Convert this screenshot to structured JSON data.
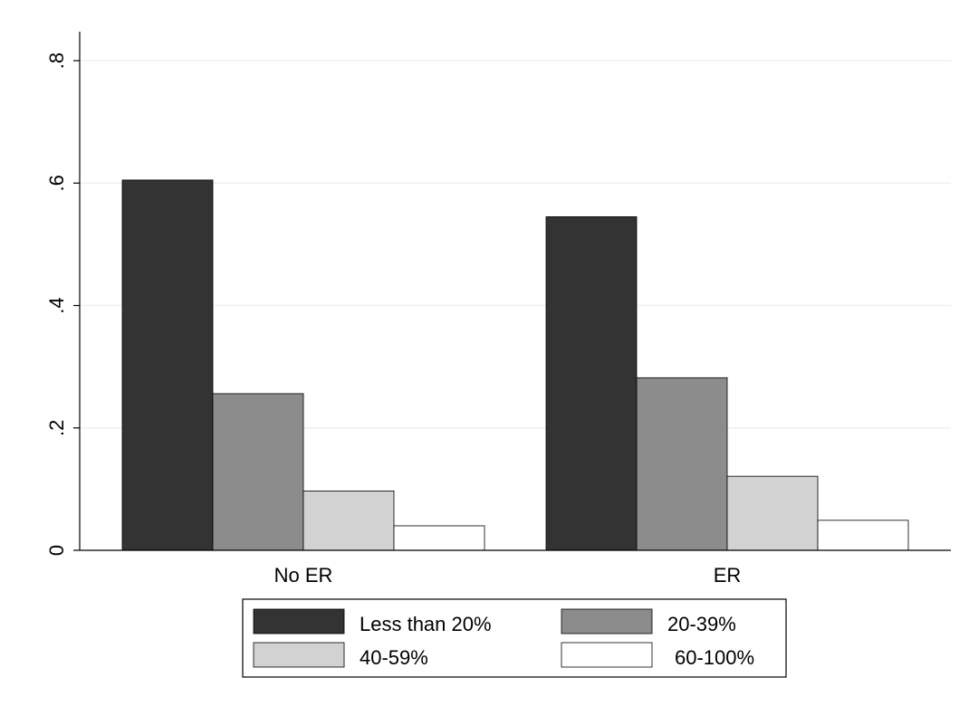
{
  "chart_data": {
    "type": "bar",
    "categories": [
      "No ER",
      "ER"
    ],
    "series": [
      {
        "name": "Less than 20%",
        "values": [
          0.605,
          0.545
        ],
        "color": "#333333"
      },
      {
        "name": "20-39%",
        "values": [
          0.256,
          0.282
        ],
        "color": "#8c8c8c"
      },
      {
        "name": "40-59%",
        "values": [
          0.097,
          0.121
        ],
        "color": "#d2d2d2"
      },
      {
        "name": "60-100%",
        "values": [
          0.04,
          0.049
        ],
        "color": "#ffffff"
      }
    ],
    "yticks": [
      0,
      0.2,
      0.4,
      0.6,
      0.8
    ],
    "ytick_labels": [
      "0",
      ".2",
      ".4",
      ".6",
      ".8"
    ],
    "ylim": [
      0,
      0.84
    ],
    "grid": true,
    "legend_position": "bottom",
    "title": "",
    "xlabel": "",
    "ylabel": ""
  }
}
